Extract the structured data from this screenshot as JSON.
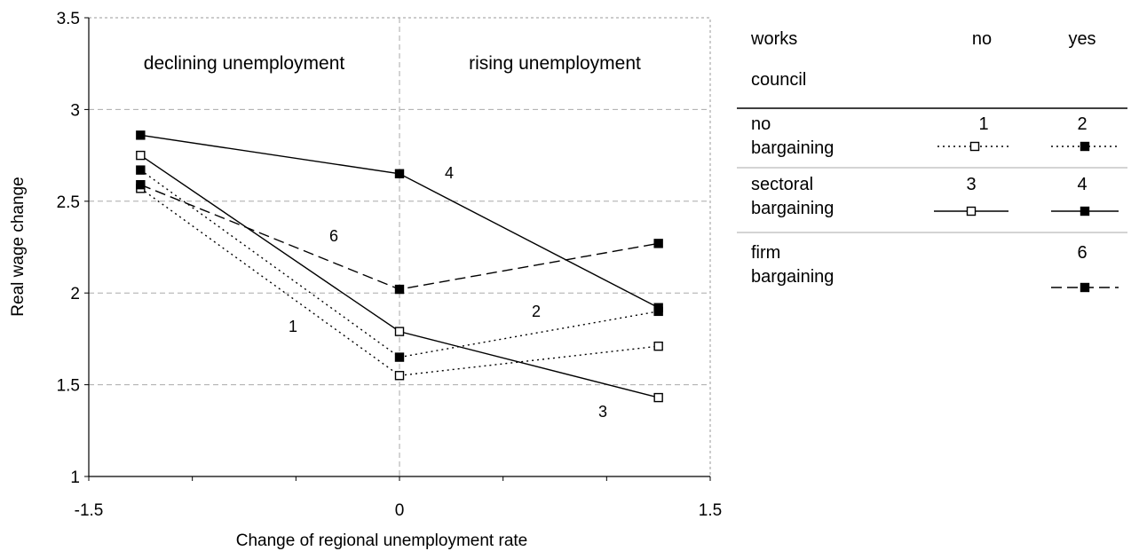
{
  "chart_data": {
    "type": "line",
    "xlabel": "Change of regional unemployment rate",
    "ylabel": "Real wage change",
    "xlim": [
      -1.5,
      1.5
    ],
    "ylim": [
      1,
      3.5
    ],
    "x_ticks": [
      "-1.5",
      "0",
      "1.5"
    ],
    "y_ticks": [
      "1",
      "1.5",
      "2",
      "2.5",
      "3",
      "3.5"
    ],
    "grid": "horizontal dashed gridlines, vertical dashed line at x = 0",
    "regions": [
      "declining unemployment",
      "rising unemployment"
    ],
    "x": [
      -1.25,
      0,
      1.25
    ],
    "series": [
      {
        "name": "1",
        "marker": "open-square",
        "line": "dotted",
        "values": [
          2.57,
          1.55,
          1.71
        ]
      },
      {
        "name": "2",
        "marker": "filled-square",
        "line": "dotted",
        "values": [
          2.67,
          1.65,
          1.9
        ]
      },
      {
        "name": "3",
        "marker": "open-square",
        "line": "solid",
        "values": [
          2.75,
          1.79,
          1.43
        ]
      },
      {
        "name": "4",
        "marker": "filled-square",
        "line": "solid",
        "values": [
          2.86,
          2.65,
          1.92
        ]
      },
      {
        "name": "6",
        "marker": "filled-square",
        "line": "dashed",
        "values": [
          2.59,
          2.02,
          2.27
        ]
      }
    ],
    "legend": {
      "placement": "right",
      "header": {
        "row_title": [
          "works",
          "council"
        ],
        "columns": [
          "no",
          "yes"
        ]
      },
      "rows": [
        {
          "label": [
            "no",
            "bargaining"
          ],
          "no": "1",
          "yes": "2"
        },
        {
          "label": [
            "sectoral",
            "bargaining"
          ],
          "no": "3",
          "yes": "4"
        },
        {
          "label": [
            "firm",
            "bargaining"
          ],
          "no": "",
          "yes": "6"
        }
      ]
    }
  }
}
